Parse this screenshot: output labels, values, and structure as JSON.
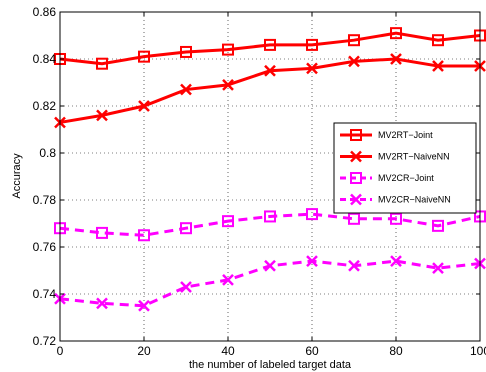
{
  "chart_data": {
    "type": "line",
    "xlabel": "the number of labeled target data",
    "ylabel": "Accuracy",
    "xlim": [
      0,
      100
    ],
    "ylim": [
      0.72,
      0.86
    ],
    "xticks": [
      0,
      20,
      40,
      60,
      80,
      100
    ],
    "yticks": [
      0.72,
      0.74,
      0.76,
      0.78,
      0.8,
      0.82,
      0.84,
      0.86
    ],
    "ytick_labels": [
      "0.72",
      "0.74",
      "0.76",
      "0.78",
      "0.8",
      "0.82",
      "0.84",
      "0.86"
    ],
    "grid": true,
    "legend_position": "right",
    "x": [
      0,
      10,
      20,
      30,
      40,
      50,
      60,
      70,
      80,
      90,
      100
    ],
    "series": [
      {
        "name": "MV2RT−Joint",
        "color": "#ff0000",
        "line": "solid",
        "marker": "square",
        "values": [
          0.84,
          0.838,
          0.841,
          0.843,
          0.844,
          0.846,
          0.846,
          0.848,
          0.851,
          0.848,
          0.85
        ]
      },
      {
        "name": "MV2RT−NaiveNN",
        "color": "#ff0000",
        "line": "solid",
        "marker": "x",
        "values": [
          0.813,
          0.816,
          0.82,
          0.827,
          0.829,
          0.835,
          0.836,
          0.839,
          0.84,
          0.837,
          0.837
        ]
      },
      {
        "name": "MV2CR−Joint",
        "color": "#ff00ff",
        "line": "dashed",
        "marker": "square",
        "values": [
          0.768,
          0.766,
          0.765,
          0.768,
          0.771,
          0.773,
          0.774,
          0.772,
          0.772,
          0.769,
          0.773
        ]
      },
      {
        "name": "MV2CR−NaiveNN",
        "color": "#ff00ff",
        "line": "dashed",
        "marker": "x",
        "values": [
          0.738,
          0.736,
          0.735,
          0.743,
          0.746,
          0.752,
          0.754,
          0.752,
          0.754,
          0.751,
          0.753
        ]
      }
    ]
  }
}
